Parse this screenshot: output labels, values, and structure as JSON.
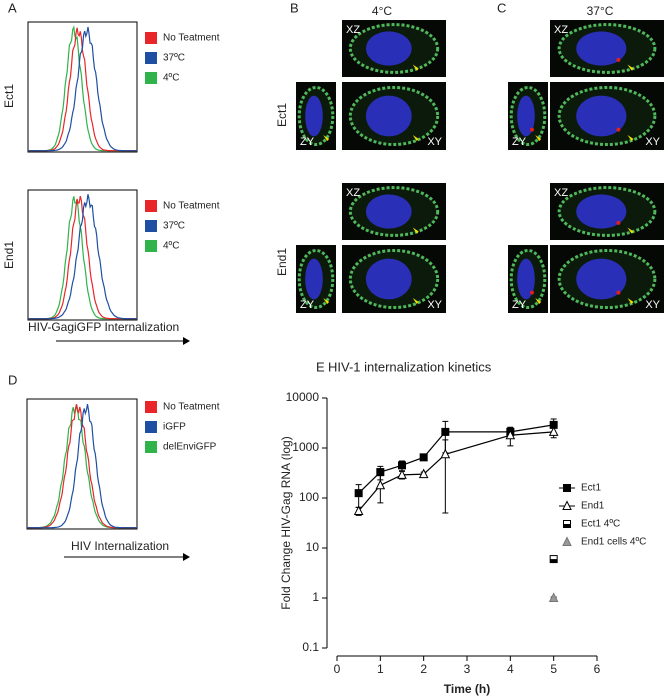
{
  "panels": {
    "A": {
      "label": "A",
      "rows": [
        "Ect1",
        "End1"
      ],
      "legend": [
        {
          "name": "No Teatment",
          "color": "#e8262a"
        },
        {
          "name": "37ºC",
          "color": "#1f4fa3"
        },
        {
          "name": "4ºC",
          "color": "#2fb34a"
        }
      ],
      "xlabel": "HIV-GagiGFP Internalization"
    },
    "B": {
      "label": "B",
      "title": "4°C"
    },
    "C": {
      "label": "C",
      "title": "37°C"
    },
    "image_rows": [
      "Ect1",
      "End1"
    ],
    "image_labels": {
      "xz": "XZ",
      "zy": "ZY",
      "xy": "XY"
    },
    "D": {
      "label": "D",
      "legend": [
        {
          "name": "No Teatment",
          "color": "#e8262a"
        },
        {
          "name": "iGFP",
          "color": "#1f4fa3"
        },
        {
          "name": "delEnviGFP",
          "color": "#2fb34a"
        }
      ],
      "xlabel": "HIV Internalization"
    },
    "E": {
      "label": "E"
    }
  },
  "chart_data": {
    "type": "line",
    "title": "HIV-1 internalization kinetics",
    "x_label": "Time (h)",
    "y_label": "Fold Change HIV-Gag RNA (log)",
    "xlim": [
      0,
      6
    ],
    "xticks": [
      0,
      1,
      2,
      3,
      4,
      5,
      6
    ],
    "ylim": [
      0.1,
      10000
    ],
    "yticks": [
      0.1,
      1,
      10,
      100,
      1000,
      10000
    ],
    "log_y": true,
    "legend": "right",
    "series": [
      {
        "name": "Ect1",
        "color": "#000000",
        "marker": "square-filled",
        "line": true,
        "x": [
          0.5,
          1,
          1.5,
          2,
          2.5,
          4,
          5
        ],
        "values": [
          125,
          330,
          450,
          650,
          2100,
          2100,
          2900
        ],
        "errors": [
          60,
          100,
          100,
          60,
          1300,
          500,
          900
        ]
      },
      {
        "name": "End1",
        "color": "#000000",
        "marker": "triangle-open",
        "line": true,
        "x": [
          0.5,
          1,
          1.5,
          2,
          2.5,
          4,
          5
        ],
        "values": [
          55,
          180,
          290,
          300,
          750,
          1800,
          2100
        ],
        "errors": [
          10,
          100,
          50,
          30,
          700,
          700,
          500
        ]
      },
      {
        "name": "Ect1 4ºC",
        "color": "#000000",
        "marker": "square-half",
        "line": false,
        "x": [
          5
        ],
        "values": [
          6
        ],
        "errors": [
          0.5
        ]
      },
      {
        "name": "End1 cells 4ºC",
        "color": "#000000",
        "marker": "triangle-half",
        "line": false,
        "x": [
          5
        ],
        "values": [
          1
        ],
        "errors": [
          0.05
        ]
      }
    ]
  }
}
